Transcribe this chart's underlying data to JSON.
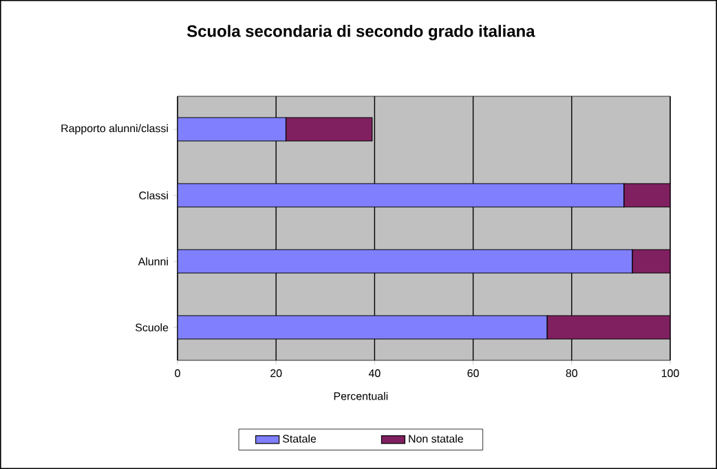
{
  "chart_data": {
    "type": "bar",
    "orientation": "horizontal",
    "stacked": true,
    "title": "Scuola secondaria di secondo grado italiana",
    "xlabel": "Percentuali",
    "categories": [
      "Rapporto alunni/classi",
      "Classi",
      "Alunni",
      "Scuole"
    ],
    "series": [
      {
        "name": "Statale",
        "color": "#8080ff",
        "values": [
          22,
          90.6,
          92.3,
          75
        ]
      },
      {
        "name": "Non statale",
        "color": "#802060",
        "values": [
          17.5,
          9.4,
          7.7,
          25
        ]
      }
    ],
    "xlim": [
      0,
      100
    ],
    "xticks": [
      0,
      20,
      40,
      60,
      80,
      100
    ],
    "grid": "x",
    "legend": "bottom"
  }
}
